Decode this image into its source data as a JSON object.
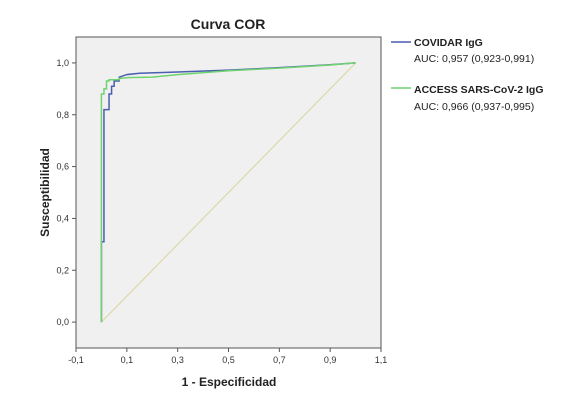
{
  "chart_data": {
    "type": "line",
    "title": "Curva COR",
    "xlabel": "1 - Especificidad",
    "ylabel": "Susceptibilidad",
    "xlim": [
      -0.1,
      1.1
    ],
    "ylim": [
      -0.1,
      1.1
    ],
    "xticks": [
      -0.1,
      0.1,
      0.3,
      0.5,
      0.7,
      0.9,
      1.1
    ],
    "xtick_labels": [
      "-0,1",
      "0,1",
      "0,3",
      "0,5",
      "0,7",
      "0,9",
      "1,1"
    ],
    "yticks": [
      0.0,
      0.2,
      0.4,
      0.6,
      0.8,
      1.0
    ],
    "ytick_labels": [
      "0,0",
      "0,2",
      "0,4",
      "0,6",
      "0,8",
      "1,0"
    ],
    "grid": false,
    "background": "#f0f0f0",
    "legend_position": "right",
    "series": [
      {
        "name": "COVIDAR IgG",
        "auc_label": "AUC: 0,957 (0,923-0,991)",
        "color": "#4a5faf",
        "x": [
          0.0,
          0.0,
          0.01,
          0.01,
          0.03,
          0.03,
          0.04,
          0.04,
          0.05,
          0.05,
          0.07,
          0.07,
          0.1,
          0.15,
          0.3,
          0.5,
          0.7,
          0.9,
          1.0
        ],
        "y": [
          0.0,
          0.31,
          0.31,
          0.82,
          0.82,
          0.88,
          0.88,
          0.91,
          0.91,
          0.93,
          0.93,
          0.945,
          0.955,
          0.96,
          0.965,
          0.972,
          0.982,
          0.993,
          1.0
        ]
      },
      {
        "name": "ACCESS SARS-CoV-2 IgG",
        "auc_label": "AUC: 0,966 (0,937-0,995)",
        "color": "#6fd36f",
        "x": [
          0.0,
          0.0,
          0.01,
          0.01,
          0.02,
          0.02,
          0.03,
          0.03,
          0.07,
          0.07,
          0.1,
          0.2,
          0.3,
          0.5,
          0.7,
          0.9,
          1.0
        ],
        "y": [
          0.0,
          0.88,
          0.88,
          0.9,
          0.9,
          0.93,
          0.93,
          0.935,
          0.935,
          0.94,
          0.943,
          0.945,
          0.955,
          0.97,
          0.98,
          0.992,
          1.0
        ]
      }
    ],
    "reference_line": {
      "x": [
        0.0,
        1.0
      ],
      "y": [
        0.0,
        1.0
      ],
      "color": "#dcd9a8"
    }
  },
  "colors": {
    "plot_background": "#f0f0f0",
    "frame": "#555555",
    "axis_text": "#333333"
  }
}
